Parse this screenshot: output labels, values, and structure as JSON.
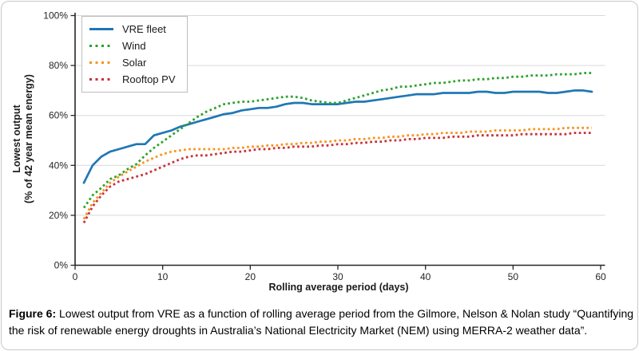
{
  "figure": {
    "caption_prefix": "Figure 6:",
    "caption_text": " Lowest output from VRE as a function of rolling average period from the Gilmore, Nelson & Nolan study “Quantifying the risk of renewable energy droughts in Australia’s National Electricity Market (NEM) using MERRA-2 weather data”."
  },
  "chart_data": {
    "type": "line",
    "title": "",
    "xlabel": "Rolling average period (days)",
    "ylabel_line1": "Lowest output",
    "ylabel_line2": "(% of 42 year mean energy)",
    "xlim": [
      0,
      60
    ],
    "ylim": [
      0,
      100
    ],
    "x_ticks": [
      0,
      10,
      20,
      30,
      40,
      50,
      60
    ],
    "y_tick_labels": [
      "0%",
      "20%",
      "40%",
      "60%",
      "80%",
      "100%"
    ],
    "grid": true,
    "legend_position": "top-left",
    "grid_color": "#d9d9d9",
    "axis_color": "#262626",
    "x": [
      1,
      2,
      3,
      4,
      5,
      6,
      7,
      8,
      9,
      10,
      11,
      12,
      13,
      14,
      15,
      16,
      17,
      18,
      19,
      20,
      21,
      22,
      23,
      24,
      25,
      26,
      27,
      28,
      29,
      30,
      31,
      32,
      33,
      34,
      35,
      36,
      37,
      38,
      39,
      40,
      41,
      42,
      43,
      44,
      45,
      46,
      47,
      48,
      49,
      50,
      51,
      52,
      53,
      54,
      55,
      56,
      57,
      58,
      59
    ],
    "series": [
      {
        "name": "VRE fleet",
        "style": "solid",
        "color": "#1f77b4",
        "values": [
          33,
          40,
          43.5,
          45.5,
          46.5,
          47.5,
          48.5,
          48.5,
          52,
          53,
          54,
          55.5,
          56.5,
          57.5,
          58.5,
          59.5,
          60.5,
          61,
          62,
          62.5,
          63,
          63,
          63.5,
          64.5,
          65,
          65,
          64.5,
          64.5,
          64.5,
          64.5,
          65,
          65.5,
          65.5,
          66,
          66.5,
          67,
          67.5,
          68,
          68.5,
          68.5,
          68.5,
          69,
          69,
          69,
          69,
          69.5,
          69.5,
          69,
          69,
          69.5,
          69.5,
          69.5,
          69.5,
          69,
          69,
          69.5,
          70,
          70,
          69.5
        ]
      },
      {
        "name": "Wind",
        "style": "dotted",
        "color": "#2ba22b",
        "values": [
          23,
          28,
          31,
          34.5,
          36,
          38.5,
          40.5,
          44,
          47,
          49.5,
          52,
          54.5,
          57,
          59.5,
          61.5,
          63,
          64.5,
          65,
          65.5,
          65.5,
          66,
          66.5,
          67,
          67.5,
          67.5,
          67,
          66,
          65.5,
          65,
          65,
          66,
          67,
          68,
          69,
          70,
          70.5,
          71.5,
          71.5,
          72,
          72.5,
          73,
          73,
          73.5,
          74,
          74,
          74.5,
          74.5,
          75,
          75,
          75.5,
          75.5,
          76,
          76,
          76,
          76.5,
          76.5,
          76.5,
          77,
          77
        ]
      },
      {
        "name": "Solar",
        "style": "dotted",
        "color": "#f7941e",
        "values": [
          18.5,
          25,
          29,
          33,
          35.5,
          37.5,
          39.5,
          41.5,
          43,
          44.5,
          45.5,
          46,
          46.5,
          46.5,
          46.5,
          46.5,
          46.5,
          47,
          47,
          47.5,
          47.5,
          48,
          48,
          48.5,
          48.5,
          49,
          49,
          49.5,
          49.5,
          50,
          50,
          50.5,
          50.5,
          51,
          51,
          51.5,
          51.5,
          52,
          52,
          52.5,
          52.5,
          53,
          53,
          53,
          53.5,
          53.5,
          53.5,
          54,
          54,
          54,
          54,
          54.5,
          54.5,
          54.5,
          54.5,
          55,
          55,
          55,
          55
        ]
      },
      {
        "name": "Rooftop PV",
        "style": "dotted",
        "color": "#c9303a",
        "values": [
          17,
          23.5,
          28,
          31.5,
          33.5,
          34.5,
          35.5,
          36.5,
          38,
          39.5,
          41,
          42.5,
          43.5,
          44,
          44,
          44.5,
          45,
          45.5,
          45.5,
          46,
          46.5,
          46.5,
          47,
          47,
          47.5,
          47.5,
          47.5,
          48,
          48,
          48.5,
          48.5,
          49,
          49,
          49.5,
          49.5,
          50,
          50,
          50.5,
          50.5,
          51,
          51,
          51,
          51.5,
          51.5,
          51.5,
          52,
          52,
          52,
          52,
          52,
          52.5,
          52.5,
          52.5,
          52.5,
          52.5,
          52.5,
          53,
          53,
          53
        ]
      }
    ]
  }
}
